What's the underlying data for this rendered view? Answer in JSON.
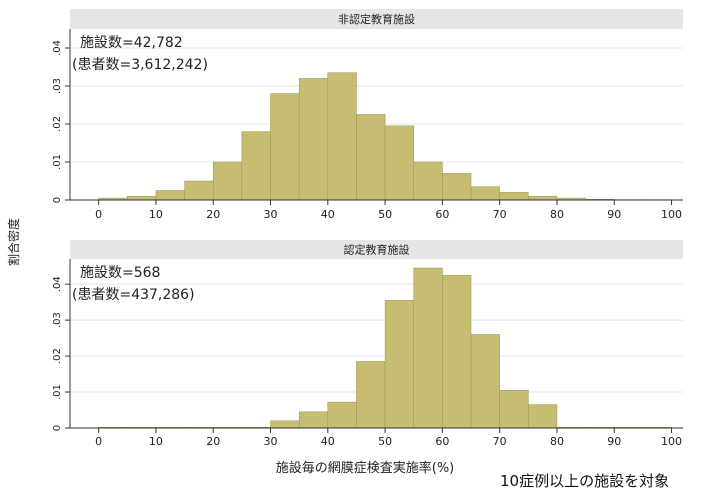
{
  "chart_data": [
    {
      "type": "bar",
      "title": "非認定教育施設",
      "annotation_line1": "施設数=42,782",
      "annotation_line2": "(患者数=3,612,242)",
      "bin_width": 5,
      "bin_starts": [
        0,
        5,
        10,
        15,
        20,
        25,
        30,
        35,
        40,
        45,
        50,
        55,
        60,
        65,
        70,
        75,
        80,
        85,
        90,
        95
      ],
      "values": [
        0.0005,
        0.001,
        0.0025,
        0.005,
        0.01,
        0.018,
        0.028,
        0.032,
        0.0335,
        0.0225,
        0.0195,
        0.01,
        0.007,
        0.0035,
        0.002,
        0.001,
        0.0005,
        0.0002,
        0.0001,
        0.0001
      ],
      "xlim": [
        -5,
        102
      ],
      "ylim": [
        0,
        0.045
      ],
      "xticks": [
        0,
        10,
        20,
        30,
        40,
        50,
        60,
        70,
        80,
        90,
        100
      ],
      "yticks": [
        0,
        0.01,
        0.02,
        0.03,
        0.04
      ],
      "ytick_labels": [
        "0",
        ".01",
        ".02",
        ".03",
        ".04"
      ],
      "grid": true,
      "bar_color": "#c6bc72",
      "bar_edge": "#9e9450"
    },
    {
      "type": "bar",
      "title": "認定教育施設",
      "annotation_line1": "施設数=568",
      "annotation_line2": "(患者数=437,286)",
      "bin_width": 5,
      "bin_starts": [
        0,
        5,
        10,
        15,
        20,
        25,
        30,
        35,
        40,
        45,
        50,
        55,
        60,
        65,
        70,
        75,
        80,
        85,
        90,
        95
      ],
      "values": [
        0.0002,
        0.0002,
        0.0002,
        0.0002,
        0.0002,
        0.0002,
        0.002,
        0.0045,
        0.0072,
        0.0185,
        0.0355,
        0.0445,
        0.0425,
        0.026,
        0.0105,
        0.0065,
        0.0002,
        0.0002,
        0.0002,
        0.0002
      ],
      "xlim": [
        -5,
        102
      ],
      "ylim": [
        0,
        0.047
      ],
      "xticks": [
        0,
        10,
        20,
        30,
        40,
        50,
        60,
        70,
        80,
        90,
        100
      ],
      "yticks": [
        0,
        0.01,
        0.02,
        0.03,
        0.04
      ],
      "ytick_labels": [
        "0",
        ".01",
        ".02",
        ".03",
        ".04"
      ],
      "grid": true,
      "bar_color": "#c6bc72",
      "bar_edge": "#9e9450"
    }
  ],
  "ylabel": "割合密度",
  "xlabel": "施設毎の網膜症検査実施率(%)",
  "footnote": "10症例以上の施設を対象",
  "colors": {
    "strip": "#e6e6e6",
    "grid": "#e4e4e4",
    "axis": "#333333"
  }
}
